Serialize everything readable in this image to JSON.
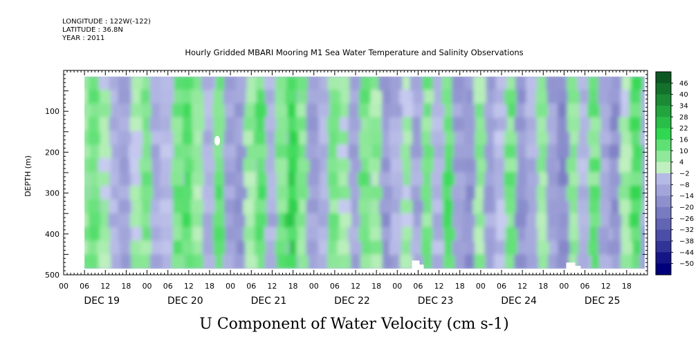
{
  "header": {
    "longitude": "LONGITUDE : 122W(-122)",
    "latitude": "LATITUDE : 36.8N",
    "year": "YEAR : 2011"
  },
  "chart_data": {
    "type": "heatmap",
    "title": "Hourly Gridded MBARI Mooring M1 Sea Water Temperature and Salinity Observations",
    "xlabel": "U Component of Water Velocity (cm s-1)",
    "ylabel": "DEPTH (m)",
    "y_range": [
      0,
      500
    ],
    "y_ticks": [
      100,
      200,
      300,
      400,
      500
    ],
    "y_inverted": true,
    "x_range_hours": [
      0,
      168
    ],
    "x_hour_ticks": [
      "00",
      "06",
      "12",
      "18",
      "00",
      "06",
      "12",
      "18",
      "00",
      "06",
      "12",
      "18",
      "00",
      "06",
      "12",
      "18",
      "00",
      "06",
      "12",
      "18",
      "00",
      "06",
      "12",
      "18",
      "00",
      "06",
      "12",
      "18"
    ],
    "x_day_labels": [
      "DEC 19",
      "DEC 20",
      "DEC 21",
      "DEC 22",
      "DEC 23",
      "DEC 24",
      "DEC 25"
    ],
    "data_depth_range": [
      15,
      485
    ],
    "data_time_start_hours": 6,
    "colorbar": {
      "levels": [
        -50,
        -44,
        -38,
        -32,
        -26,
        -20,
        -14,
        -8,
        -2,
        4,
        10,
        16,
        22,
        28,
        34,
        40,
        46
      ],
      "low_color": "#00007a",
      "mid_low_color": "#c8ccf0",
      "mid_high_color": "#c0f0c0",
      "high_color": "#0a4a1e"
    },
    "bands": [
      {
        "t": 6,
        "v": 6
      },
      {
        "t": 9,
        "v": 12
      },
      {
        "t": 12,
        "v": 3
      },
      {
        "t": 15,
        "v": -6
      },
      {
        "t": 18,
        "v": -10
      },
      {
        "t": 21,
        "v": 4
      },
      {
        "t": 24,
        "v": 8
      },
      {
        "t": 27,
        "v": -8
      },
      {
        "t": 30,
        "v": -4
      },
      {
        "t": 33,
        "v": 10
      },
      {
        "t": 36,
        "v": 14
      },
      {
        "t": 39,
        "v": 6
      },
      {
        "t": 42,
        "v": -6
      },
      {
        "t": 45,
        "v": 12
      },
      {
        "t": 48,
        "v": -10
      },
      {
        "t": 51,
        "v": -14
      },
      {
        "t": 54,
        "v": 6
      },
      {
        "t": 57,
        "v": 12
      },
      {
        "t": 60,
        "v": -8
      },
      {
        "t": 63,
        "v": 10
      },
      {
        "t": 66,
        "v": 18
      },
      {
        "t": 69,
        "v": 8
      },
      {
        "t": 72,
        "v": -12
      },
      {
        "t": 75,
        "v": -6
      },
      {
        "t": 78,
        "v": 8
      },
      {
        "t": 81,
        "v": 4
      },
      {
        "t": 84,
        "v": -10
      },
      {
        "t": 87,
        "v": 10
      },
      {
        "t": 90,
        "v": 6
      },
      {
        "t": 93,
        "v": -14
      },
      {
        "t": 96,
        "v": -8
      },
      {
        "t": 99,
        "v": 4
      },
      {
        "t": 102,
        "v": -10
      },
      {
        "t": 105,
        "v": 8
      },
      {
        "t": 108,
        "v": -6
      },
      {
        "t": 111,
        "v": 12
      },
      {
        "t": 114,
        "v": -12
      },
      {
        "t": 117,
        "v": -16
      },
      {
        "t": 120,
        "v": 6
      },
      {
        "t": 123,
        "v": -10
      },
      {
        "t": 126,
        "v": -4
      },
      {
        "t": 129,
        "v": 10
      },
      {
        "t": 132,
        "v": -14
      },
      {
        "t": 135,
        "v": -8
      },
      {
        "t": 138,
        "v": 6
      },
      {
        "t": 141,
        "v": -12
      },
      {
        "t": 144,
        "v": -18
      },
      {
        "t": 147,
        "v": 8
      },
      {
        "t": 150,
        "v": -6
      },
      {
        "t": 153,
        "v": 10
      },
      {
        "t": 156,
        "v": -10
      },
      {
        "t": 159,
        "v": -16
      },
      {
        "t": 162,
        "v": 4
      },
      {
        "t": 165,
        "v": 14
      },
      {
        "t": 168,
        "v": -8
      }
    ]
  }
}
